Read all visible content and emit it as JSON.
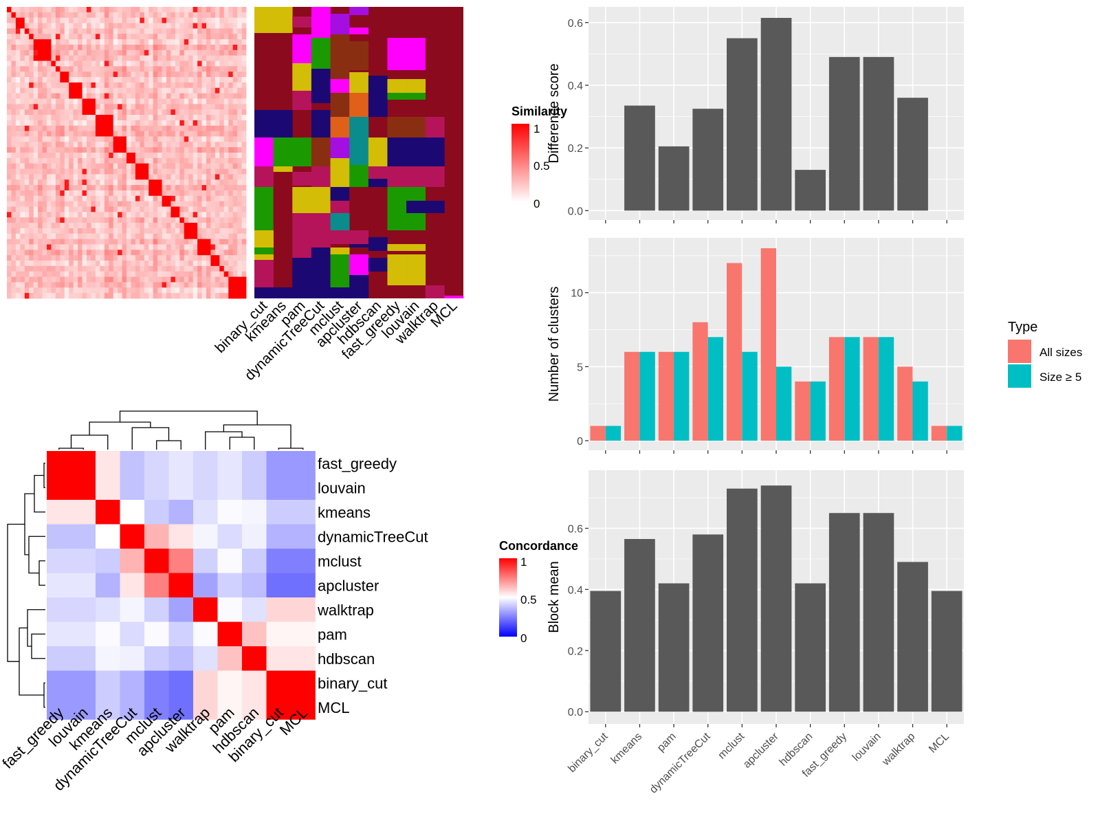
{
  "similarity_legend": {
    "title": "Similarity",
    "ticks": [
      "1",
      "0.5",
      "0"
    ]
  },
  "concordance_legend": {
    "title": "Concordance",
    "ticks": [
      "1",
      "0.5",
      "0"
    ]
  },
  "type_legend": {
    "title": "Type",
    "items": [
      "All sizes",
      "Size ≥ 5"
    ]
  },
  "colors": {
    "bar_gray": "#595959",
    "panel_bg": "#ebebeb",
    "all_sizes": "#f8766d",
    "size_ge_5": "#00bfc4",
    "heat_red": "#ff0000",
    "heat_blue": "#0000ff",
    "cluster_palette": [
      "#8b0a1e",
      "#d4bd06",
      "#ff00ff",
      "#1a9a00",
      "#1c0873",
      "#b5145a",
      "#8a2e12",
      "#e0601a",
      "#0a8c8c",
      "#a40ee0"
    ]
  },
  "chart_data": [
    {
      "id": "similarity-heatmap",
      "type": "heatmap",
      "description_values": "60x60 cell similarity matrix with strong red diagonal blocks; values 0-1",
      "block_sizes": [
        1,
        1,
        2,
        1,
        1,
        4,
        1,
        1,
        2,
        3,
        3,
        4,
        3,
        2,
        3,
        3,
        2,
        2,
        1,
        3,
        3,
        2,
        1,
        1,
        4
      ],
      "value_range": [
        0,
        1
      ]
    },
    {
      "id": "cluster-assignment-heatmap",
      "type": "heatmap",
      "columns": [
        "binary_cut",
        "kmeans",
        "pam",
        "dynamicTreeCut",
        "mclust",
        "apcluster",
        "hdbscan",
        "fast_greedy",
        "louvain",
        "walktrap",
        "MCL"
      ]
    },
    {
      "id": "concordance-heatmap",
      "type": "heatmap",
      "rows": [
        "fast_greedy",
        "louvain",
        "kmeans",
        "dynamicTreeCut",
        "mclust",
        "apcluster",
        "walktrap",
        "pam",
        "hdbscan",
        "binary_cut",
        "MCL"
      ],
      "columns": [
        "fast_greedy",
        "louvain",
        "kmeans",
        "dynamicTreeCut",
        "mclust",
        "apcluster",
        "walktrap",
        "pam",
        "hdbscan",
        "binary_cut",
        "MCL"
      ],
      "values": [
        [
          1.0,
          1.0,
          0.55,
          0.38,
          0.42,
          0.45,
          0.42,
          0.45,
          0.4,
          0.3,
          0.3
        ],
        [
          1.0,
          1.0,
          0.55,
          0.38,
          0.42,
          0.45,
          0.42,
          0.45,
          0.4,
          0.3,
          0.3
        ],
        [
          0.55,
          0.55,
          1.0,
          0.5,
          0.4,
          0.35,
          0.44,
          0.49,
          0.48,
          0.4,
          0.4
        ],
        [
          0.38,
          0.38,
          0.5,
          1.0,
          0.65,
          0.55,
          0.48,
          0.43,
          0.47,
          0.35,
          0.35
        ],
        [
          0.42,
          0.42,
          0.4,
          0.65,
          1.0,
          0.75,
          0.41,
          0.49,
          0.4,
          0.25,
          0.25
        ],
        [
          0.45,
          0.45,
          0.35,
          0.55,
          0.75,
          1.0,
          0.32,
          0.41,
          0.37,
          0.22,
          0.22
        ],
        [
          0.42,
          0.42,
          0.44,
          0.48,
          0.41,
          0.32,
          1.0,
          0.49,
          0.44,
          0.58,
          0.58
        ],
        [
          0.45,
          0.45,
          0.49,
          0.43,
          0.49,
          0.41,
          0.49,
          1.0,
          0.62,
          0.52,
          0.52
        ],
        [
          0.4,
          0.4,
          0.48,
          0.47,
          0.4,
          0.37,
          0.44,
          0.62,
          1.0,
          0.55,
          0.55
        ],
        [
          0.3,
          0.3,
          0.4,
          0.35,
          0.25,
          0.22,
          0.58,
          0.52,
          0.55,
          1.0,
          1.0
        ],
        [
          0.3,
          0.3,
          0.4,
          0.35,
          0.25,
          0.22,
          0.58,
          0.52,
          0.55,
          1.0,
          1.0
        ]
      ],
      "value_range": [
        0,
        1
      ]
    },
    {
      "id": "difference-score",
      "type": "bar",
      "categories": [
        "binary_cut",
        "kmeans",
        "pam",
        "dynamicTreeCut",
        "mclust",
        "apcluster",
        "hdbscan",
        "fast_greedy",
        "louvain",
        "walktrap",
        "MCL"
      ],
      "values": [
        0,
        0.335,
        0.205,
        0.325,
        0.55,
        0.615,
        0.13,
        0.49,
        0.49,
        0.36,
        0
      ],
      "ylabel": "Difference score",
      "ylim": [
        -0.03,
        0.65
      ],
      "yticks": [
        "0.0",
        "0.2",
        "0.4",
        "0.6"
      ]
    },
    {
      "id": "number-of-clusters",
      "type": "bar",
      "categories": [
        "binary_cut",
        "kmeans",
        "pam",
        "dynamicTreeCut",
        "mclust",
        "apcluster",
        "hdbscan",
        "fast_greedy",
        "louvain",
        "walktrap",
        "MCL"
      ],
      "series": [
        {
          "name": "All sizes",
          "values": [
            1,
            6,
            6,
            8,
            12,
            13,
            4,
            7,
            7,
            5,
            1
          ]
        },
        {
          "name": "Size ≥ 5",
          "values": [
            1,
            6,
            6,
            7,
            6,
            5,
            4,
            7,
            7,
            4,
            1
          ]
        }
      ],
      "ylabel": "Number of clusters",
      "ylim": [
        -0.65,
        13.7
      ],
      "yticks": [
        "0",
        "5",
        "10"
      ]
    },
    {
      "id": "block-mean",
      "type": "bar",
      "categories": [
        "binary_cut",
        "kmeans",
        "pam",
        "dynamicTreeCut",
        "mclust",
        "apcluster",
        "hdbscan",
        "fast_greedy",
        "louvain",
        "walktrap",
        "MCL"
      ],
      "values": [
        0.395,
        0.565,
        0.42,
        0.58,
        0.73,
        0.74,
        0.42,
        0.65,
        0.65,
        0.49,
        0.395
      ],
      "ylabel": "Block mean",
      "ylim": [
        -0.04,
        0.79
      ],
      "yticks": [
        "0.0",
        "0.2",
        "0.4",
        "0.6"
      ]
    }
  ]
}
